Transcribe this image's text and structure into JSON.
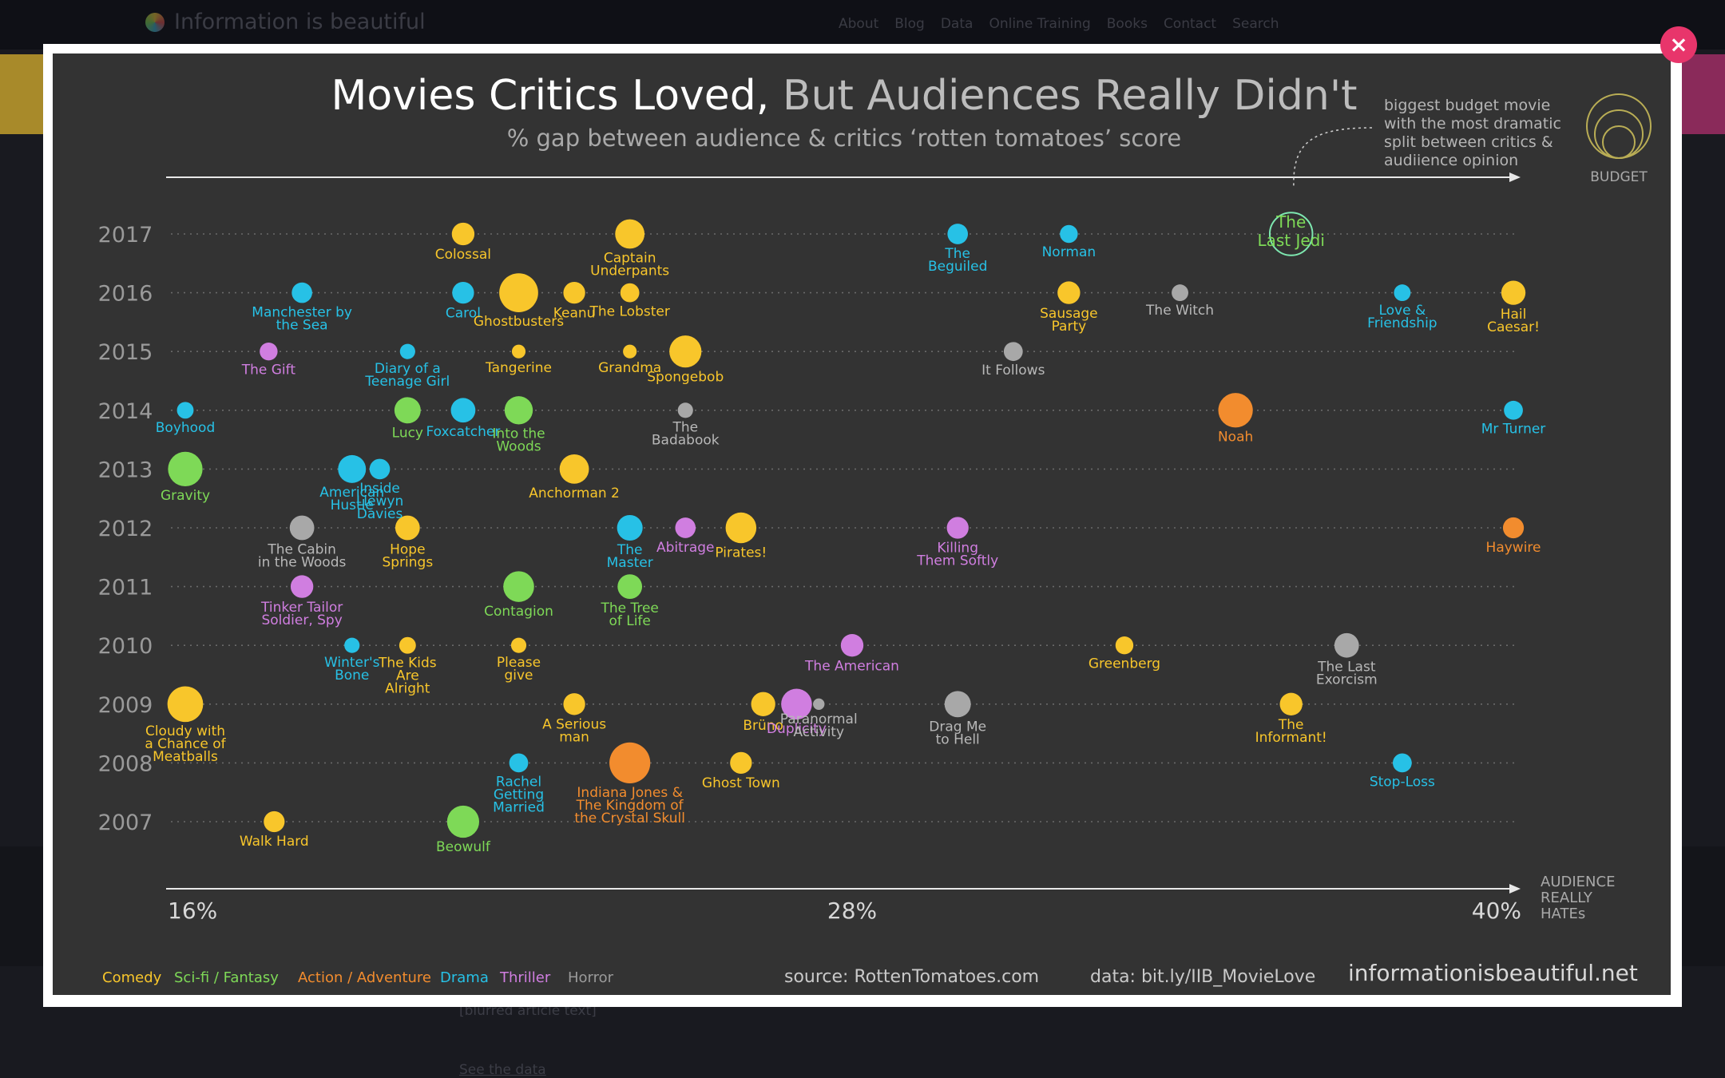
{
  "background": {
    "site_name": "Information is beautiful",
    "menu": [
      "About",
      "Blog",
      "Data",
      "Online Training",
      "Books",
      "Contact",
      "Search"
    ],
    "article_text": "[blurred article text]",
    "link_text": "See the data"
  },
  "modal": {
    "close_label": "×"
  },
  "chart_data": {
    "type": "scatter",
    "title_bold": "Movies Critics Loved,",
    "title_rest": " But Audiences Really Didn't",
    "subtitle": "% gap between audience & critics ‘rotten tomatoes’ score",
    "x_axis": {
      "min": 16,
      "max": 40,
      "tick_labels": [
        "16%",
        "28%",
        "40%"
      ],
      "label": [
        "AUDIENCE",
        "REALLY",
        "HATEs"
      ]
    },
    "y_categories": [
      "2017",
      "2016",
      "2015",
      "2014",
      "2013",
      "2012",
      "2011",
      "2010",
      "2009",
      "2008",
      "2007"
    ],
    "genres": [
      {
        "name": "Comedy",
        "color": "#f8c62b"
      },
      {
        "name": "Sci-fi / Fantasy",
        "color": "#7ed957"
      },
      {
        "name": "Action / Adventure",
        "color": "#f28c2e"
      },
      {
        "name": "Drama",
        "color": "#27c1e6"
      },
      {
        "name": "Thriller",
        "color": "#d07ee0"
      },
      {
        "name": "Horror",
        "color": "#a8a8a8"
      }
    ],
    "size_legend_label": "BUDGET",
    "annotation": [
      "biggest budget movie",
      "with the most dramatic",
      "split between critics &",
      "audiience opinion"
    ],
    "source": "source: RottenTomatoes.com",
    "data_link": "data: bit.ly/IIB_MovieLove",
    "brand": "informationisbeautiful.net",
    "movies": [
      {
        "name": [
          "Colossal"
        ],
        "genre": "Comedy",
        "year": "2017",
        "x": 21.0,
        "size": 2
      },
      {
        "name": [
          "Captain",
          "Underpants"
        ],
        "genre": "Comedy",
        "year": "2017",
        "x": 24.0,
        "size": 4
      },
      {
        "name": [
          "The",
          "Beguiled"
        ],
        "genre": "Drama",
        "year": "2017",
        "x": 29.9,
        "size": 1.5
      },
      {
        "name": [
          "Norman"
        ],
        "genre": "Drama",
        "year": "2017",
        "x": 31.9,
        "size": 1
      },
      {
        "name": [
          "The",
          "Last Jedi"
        ],
        "genre": "Sci-fi / Fantasy",
        "year": "2017",
        "x": 35.9,
        "size": 10,
        "outline": true
      },
      {
        "name": [
          "Manchester by",
          "the Sea"
        ],
        "genre": "Drama",
        "year": "2016",
        "x": 18.1,
        "size": 1.5
      },
      {
        "name": [
          "Carol"
        ],
        "genre": "Drama",
        "year": "2016",
        "x": 21.0,
        "size": 1.8
      },
      {
        "name": [
          "Ghostbusters"
        ],
        "genre": "Comedy",
        "year": "2016",
        "x": 22.0,
        "size": 8
      },
      {
        "name": [
          "Keanu"
        ],
        "genre": "Comedy",
        "year": "2016",
        "x": 23.0,
        "size": 1.8
      },
      {
        "name": [
          "The Lobster"
        ],
        "genre": "Comedy",
        "year": "2016",
        "x": 24.0,
        "size": 1.2
      },
      {
        "name": [
          "Sausage",
          "Party"
        ],
        "genre": "Comedy",
        "year": "2016",
        "x": 31.9,
        "size": 2
      },
      {
        "name": [
          "The Witch"
        ],
        "genre": "Horror",
        "year": "2016",
        "x": 33.9,
        "size": 0.8
      },
      {
        "name": [
          "Love &",
          "Friendship"
        ],
        "genre": "Drama",
        "year": "2016",
        "x": 37.9,
        "size": 0.8
      },
      {
        "name": [
          "Hail",
          "Caesar!"
        ],
        "genre": "Comedy",
        "year": "2016",
        "x": 39.9,
        "size": 2.4
      },
      {
        "name": [
          "The Gift"
        ],
        "genre": "Thriller",
        "year": "2015",
        "x": 17.5,
        "size": 1
      },
      {
        "name": [
          "Diary of a",
          "Teenage Girl"
        ],
        "genre": "Drama",
        "year": "2015",
        "x": 20.0,
        "size": 0.6
      },
      {
        "name": [
          "Tangerine"
        ],
        "genre": "Comedy",
        "year": "2015",
        "x": 22.0,
        "size": 0.4
      },
      {
        "name": [
          "Grandma"
        ],
        "genre": "Comedy",
        "year": "2015",
        "x": 24.0,
        "size": 0.4
      },
      {
        "name": [
          "Spongebob"
        ],
        "genre": "Comedy",
        "year": "2015",
        "x": 25.0,
        "size": 5
      },
      {
        "name": [
          "It Follows"
        ],
        "genre": "Horror",
        "year": "2015",
        "x": 30.9,
        "size": 1.2
      },
      {
        "name": [
          "Boyhood"
        ],
        "genre": "Drama",
        "year": "2014",
        "x": 16.0,
        "size": 0.8
      },
      {
        "name": [
          "Lucy"
        ],
        "genre": "Sci-fi / Fantasy",
        "year": "2014",
        "x": 20.0,
        "size": 3
      },
      {
        "name": [
          "Foxcatcher"
        ],
        "genre": "Drama",
        "year": "2014",
        "x": 21.0,
        "size": 2.5
      },
      {
        "name": [
          "Into the",
          "Woods"
        ],
        "genre": "Sci-fi / Fantasy",
        "year": "2014",
        "x": 22.0,
        "size": 3.6
      },
      {
        "name": [
          "The",
          "Badabook"
        ],
        "genre": "Horror",
        "year": "2014",
        "x": 25.0,
        "size": 0.6
      },
      {
        "name": [
          "Noah"
        ],
        "genre": "Action / Adventure",
        "year": "2014",
        "x": 34.9,
        "size": 6
      },
      {
        "name": [
          "Mr Turner"
        ],
        "genre": "Drama",
        "year": "2014",
        "x": 39.9,
        "size": 1.2
      },
      {
        "name": [
          "Gravity"
        ],
        "genre": "Sci-fi / Fantasy",
        "year": "2013",
        "x": 16.0,
        "size": 6
      },
      {
        "name": [
          "American",
          "Hustle"
        ],
        "genre": "Drama",
        "year": "2013",
        "x": 19.0,
        "size": 3.5
      },
      {
        "name": [
          "Inside",
          "Llewyn",
          "Davies"
        ],
        "genre": "Drama",
        "year": "2013",
        "x": 19.5,
        "size": 1.5
      },
      {
        "name": [
          "Anchorman 2"
        ],
        "genre": "Comedy",
        "year": "2013",
        "x": 23.0,
        "size": 4
      },
      {
        "name": [
          "The Cabin",
          "in the Woods"
        ],
        "genre": "Horror",
        "year": "2012",
        "x": 18.1,
        "size": 2.5
      },
      {
        "name": [
          "Hope",
          "Springs"
        ],
        "genre": "Comedy",
        "year": "2012",
        "x": 20.0,
        "size": 2.5
      },
      {
        "name": [
          "The",
          "Master"
        ],
        "genre": "Drama",
        "year": "2012",
        "x": 24.0,
        "size": 2.8
      },
      {
        "name": [
          "Abitrage"
        ],
        "genre": "Thriller",
        "year": "2012",
        "x": 25.0,
        "size": 1.5
      },
      {
        "name": [
          "Pirates!"
        ],
        "genre": "Comedy",
        "year": "2012",
        "x": 26.0,
        "size": 4.5
      },
      {
        "name": [
          "Killing",
          "Them Softly"
        ],
        "genre": "Thriller",
        "year": "2012",
        "x": 29.9,
        "size": 1.8
      },
      {
        "name": [
          "Haywire"
        ],
        "genre": "Action / Adventure",
        "year": "2012",
        "x": 39.9,
        "size": 1.6
      },
      {
        "name": [
          "Tinker Tailor",
          "Soldier, Spy"
        ],
        "genre": "Thriller",
        "year": "2011",
        "x": 18.1,
        "size": 2
      },
      {
        "name": [
          "Contagion"
        ],
        "genre": "Sci-fi / Fantasy",
        "year": "2011",
        "x": 22.0,
        "size": 4.5
      },
      {
        "name": [
          "The Tree",
          "of Life"
        ],
        "genre": "Sci-fi / Fantasy",
        "year": "2011",
        "x": 24.0,
        "size": 2.5
      },
      {
        "name": [
          "Winter's",
          "Bone"
        ],
        "genre": "Drama",
        "year": "2010",
        "x": 19.0,
        "size": 0.6
      },
      {
        "name": [
          "The Kids",
          "Are",
          "Alright"
        ],
        "genre": "Comedy",
        "year": "2010",
        "x": 20.0,
        "size": 0.8
      },
      {
        "name": [
          "Please",
          "give"
        ],
        "genre": "Comedy",
        "year": "2010",
        "x": 22.0,
        "size": 0.6
      },
      {
        "name": [
          "The American"
        ],
        "genre": "Thriller",
        "year": "2010",
        "x": 28.0,
        "size": 2
      },
      {
        "name": [
          "Greenberg"
        ],
        "genre": "Comedy",
        "year": "2010",
        "x": 32.9,
        "size": 1
      },
      {
        "name": [
          "The Last",
          "Exorcism"
        ],
        "genre": "Horror",
        "year": "2010",
        "x": 36.9,
        "size": 2.5
      },
      {
        "name": [
          "Cloudy with",
          "a Chance of",
          "Meatballs"
        ],
        "genre": "Comedy",
        "year": "2009",
        "x": 16.0,
        "size": 6.5
      },
      {
        "name": [
          "A Serious",
          "man"
        ],
        "genre": "Comedy",
        "year": "2009",
        "x": 23.0,
        "size": 1.8
      },
      {
        "name": [
          "Brüno"
        ],
        "genre": "Comedy",
        "year": "2009",
        "x": 26.4,
        "size": 2.4
      },
      {
        "name": [
          "Duplicity"
        ],
        "genre": "Thriller",
        "year": "2009",
        "x": 27.0,
        "size": 4.5
      },
      {
        "name": [
          "Paranormal",
          "Activity"
        ],
        "genre": "Horror",
        "year": "2009",
        "x": 27.4,
        "size": 0.2
      },
      {
        "name": [
          "Drag Me",
          "to Hell"
        ],
        "genre": "Horror",
        "year": "2009",
        "x": 29.9,
        "size": 3
      },
      {
        "name": [
          "The",
          "Informant!"
        ],
        "genre": "Comedy",
        "year": "2009",
        "x": 35.9,
        "size": 2
      },
      {
        "name": [
          "Rachel",
          "Getting",
          "Married"
        ],
        "genre": "Drama",
        "year": "2008",
        "x": 22.0,
        "size": 1.2
      },
      {
        "name": [
          "Indiana Jones &",
          "The Kingdom of",
          "the Crystal Skull"
        ],
        "genre": "Action / Adventure",
        "year": "2008",
        "x": 24.0,
        "size": 9
      },
      {
        "name": [
          "Ghost Town"
        ],
        "genre": "Comedy",
        "year": "2008",
        "x": 26.0,
        "size": 1.8
      },
      {
        "name": [
          "Stop-Loss"
        ],
        "genre": "Drama",
        "year": "2008",
        "x": 37.9,
        "size": 1.2
      },
      {
        "name": [
          "Walk Hard"
        ],
        "genre": "Comedy",
        "year": "2007",
        "x": 17.6,
        "size": 1.6
      },
      {
        "name": [
          "Beowulf"
        ],
        "genre": "Sci-fi / Fantasy",
        "year": "2007",
        "x": 21.0,
        "size": 5
      }
    ]
  }
}
